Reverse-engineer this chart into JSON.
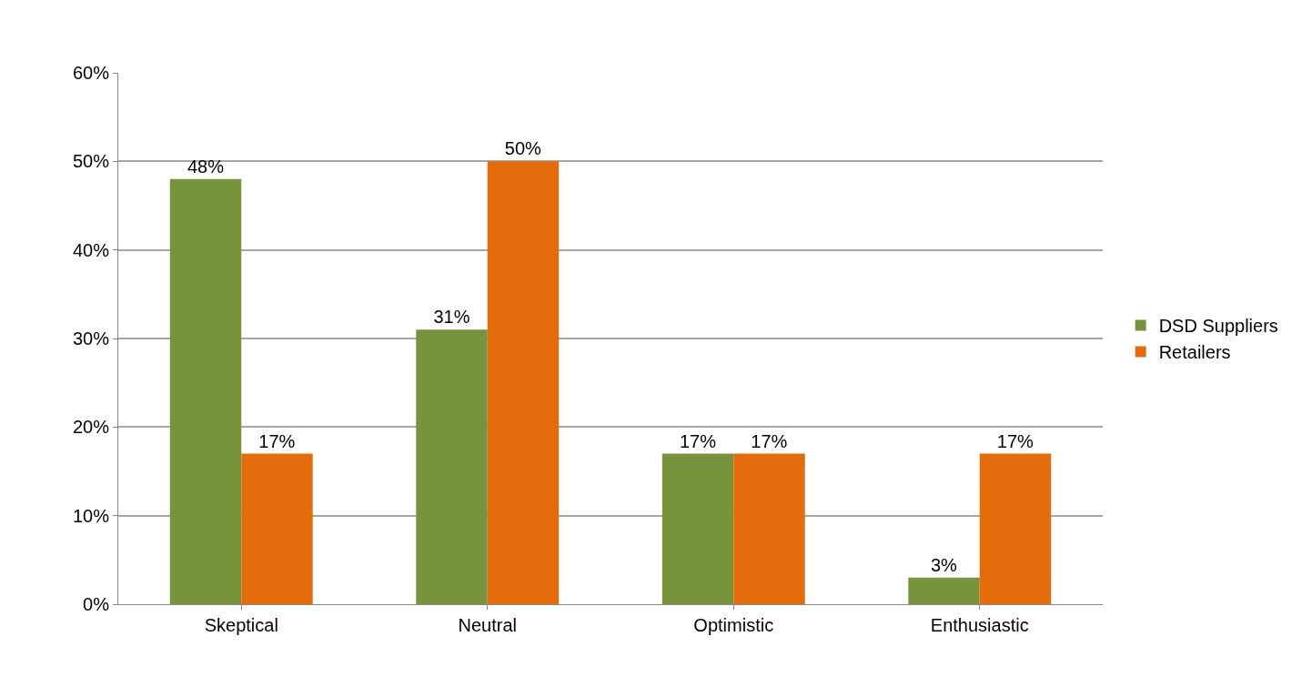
{
  "chart_data": {
    "type": "bar",
    "categories": [
      "Skeptical",
      "Neutral",
      "Optimistic",
      "Enthusiastic"
    ],
    "series": [
      {
        "name": "DSD Suppliers",
        "color": "#77933c",
        "values": [
          48,
          31,
          17,
          3
        ],
        "value_labels": [
          "48%",
          "31%",
          "17%",
          "3%"
        ]
      },
      {
        "name": "Retailers",
        "color": "#e46c0a",
        "values": [
          17,
          50,
          17,
          17
        ],
        "value_labels": [
          "17%",
          "50%",
          "17%",
          "17%"
        ]
      }
    ],
    "ylim": [
      0,
      60
    ],
    "yticks": [
      {
        "value": 0,
        "label": "0%"
      },
      {
        "value": 10,
        "label": "10%"
      },
      {
        "value": 20,
        "label": "20%"
      },
      {
        "value": 30,
        "label": "30%"
      },
      {
        "value": 40,
        "label": "40%"
      },
      {
        "value": 50,
        "label": "50%"
      },
      {
        "value": 60,
        "label": "60%"
      }
    ],
    "grid": "y",
    "legend": "right"
  }
}
